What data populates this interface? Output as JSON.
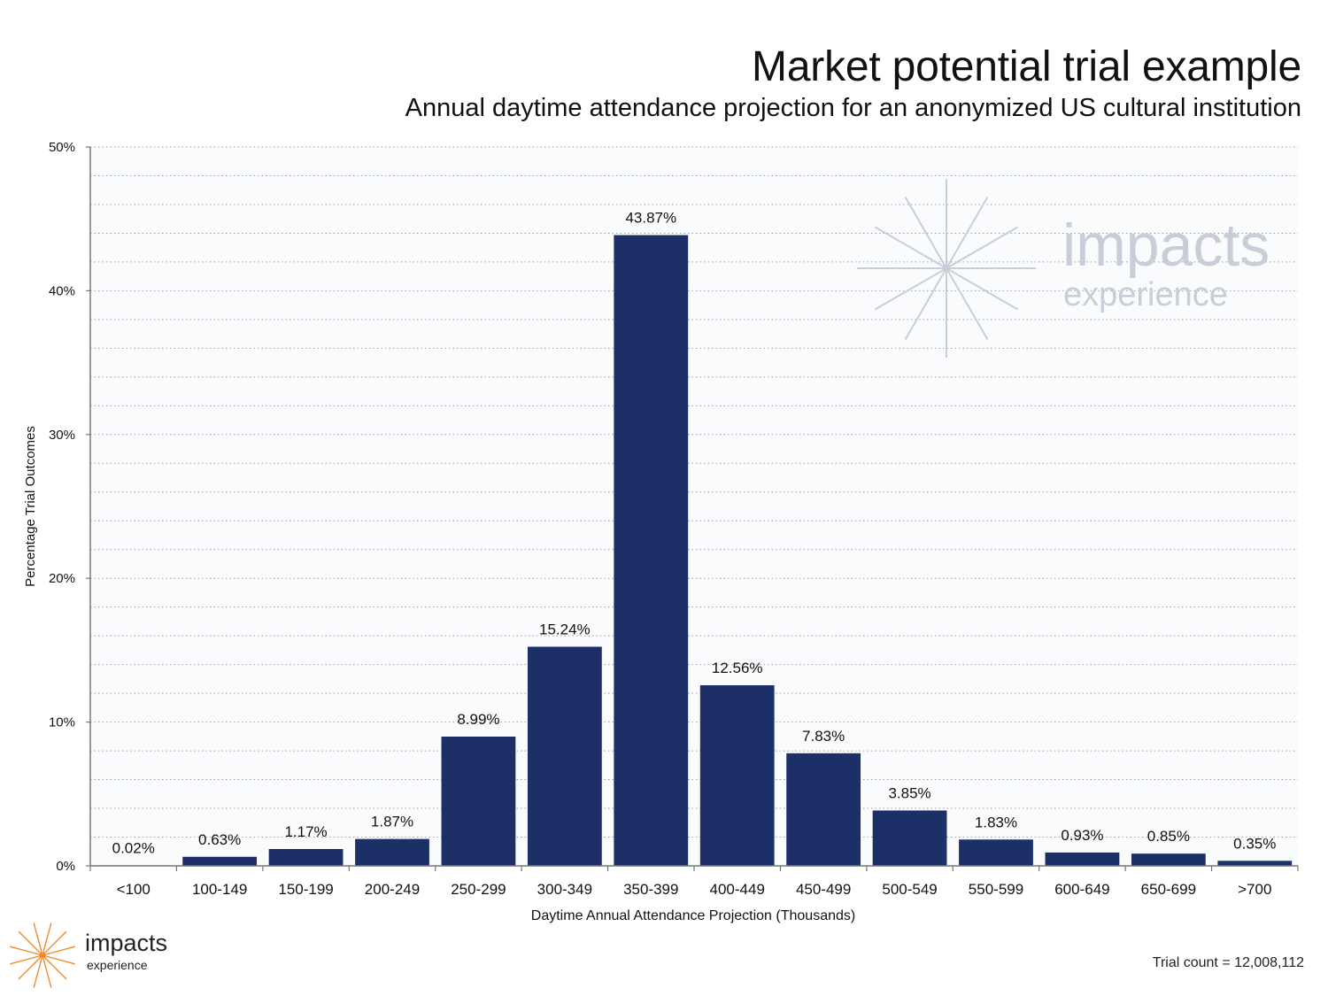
{
  "header": {
    "title": "Market potential trial example",
    "subtitle": "Annual daytime attendance projection for an anonymized US cultural institution"
  },
  "chart_data": {
    "type": "bar",
    "categories": [
      "<100",
      "100-149",
      "150-199",
      "200-249",
      "250-299",
      "300-349",
      "350-399",
      "400-449",
      "450-499",
      "500-549",
      "550-599",
      "600-649",
      "650-699",
      ">700"
    ],
    "values": [
      0.02,
      0.63,
      1.17,
      1.87,
      8.99,
      15.24,
      43.87,
      12.56,
      7.83,
      3.85,
      1.83,
      0.93,
      0.85,
      0.35
    ],
    "value_labels": [
      "0.02%",
      "0.63%",
      "1.17%",
      "1.87%",
      "8.99%",
      "15.24%",
      "43.87%",
      "12.56%",
      "7.83%",
      "3.85%",
      "1.83%",
      "0.93%",
      "0.85%",
      "0.35%"
    ],
    "xlabel": "Daytime Annual Attendance Projection (Thousands)",
    "ylabel": "Percentage Trial Outcomes",
    "ylim": [
      0,
      50
    ],
    "yticks": [
      0,
      10,
      20,
      30,
      40,
      50
    ],
    "ytick_labels": [
      "0%",
      "10%",
      "20%",
      "30%",
      "40%",
      "50%"
    ],
    "grid": true,
    "bar_color": "#1c2f66"
  },
  "watermark": {
    "word": "impacts",
    "sub": "experience",
    "color": "#c9cdd9"
  },
  "logo": {
    "word": "impacts",
    "sub": "experience",
    "color": "#f08a2c"
  },
  "footer": {
    "trial_count": "Trial count = 12,008,112"
  }
}
